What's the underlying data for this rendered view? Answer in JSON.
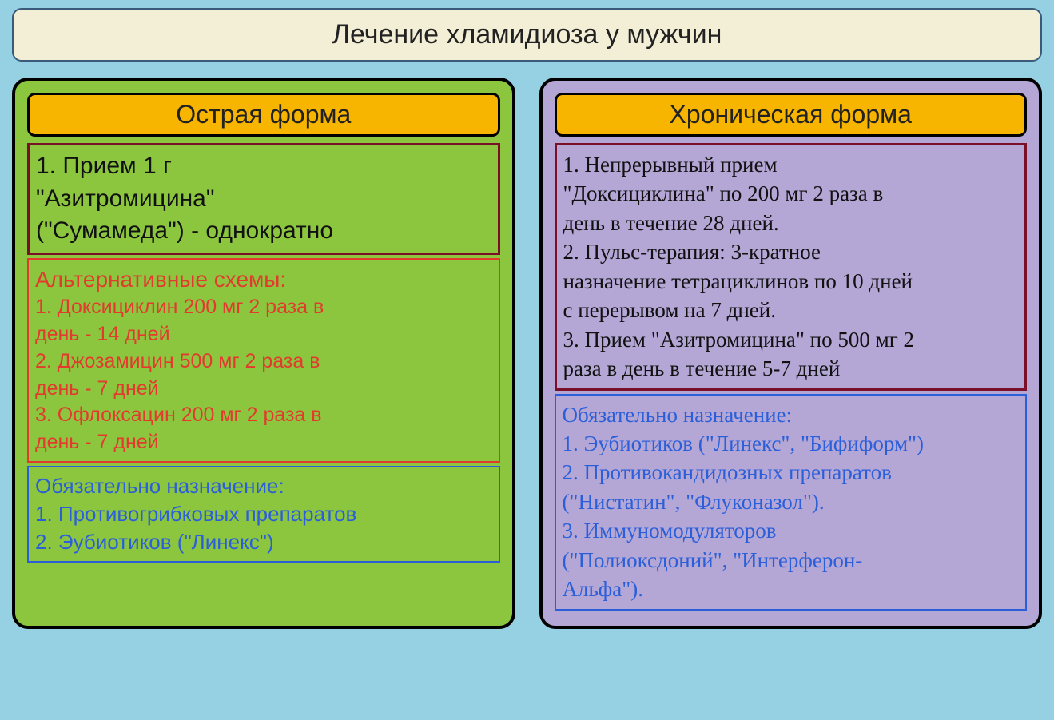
{
  "page": {
    "background_color": "#96d1e3"
  },
  "title": {
    "text": "Лечение хламидиоза у мужчин",
    "background_color": "#f3efd6",
    "border_color": "#3a5a7a",
    "font_size": 34
  },
  "acute": {
    "header": {
      "text": "Острая форма",
      "background_color": "#f7b500",
      "border_color": "#000000",
      "font_size": 32
    },
    "panel": {
      "background_color": "#8cc63f",
      "border_color": "#000000"
    },
    "primary": {
      "border_color": "#7a0f27",
      "text_color": "#111111",
      "font_size": 30,
      "line1": "1. Прием 1 г",
      "line2": "\"Азитромицина\"",
      "line3": "(\"Сумамеда\") - однократно"
    },
    "alt": {
      "border_color": "#e23b2e",
      "text_color": "#e23b2e",
      "title": "Альтернативные схемы:",
      "title_font_size": 28,
      "item_font_size": 25,
      "item1a": "1. Доксициклин 200 мг 2 раза в",
      "item1b": "день - 14 дней",
      "item2a": "2. Джозамицин 500 мг 2 раза в",
      "item2b": "день - 7 дней",
      "item3a": "3. Офлоксацин 200 мг 2 раза в",
      "item3b": "день - 7 дней"
    },
    "mandatory": {
      "border_color": "#2b5fd9",
      "text_color": "#2b5fd9",
      "font_size": 26,
      "title": "Обязательно назначение:",
      "item1": "1. Противогрибковых препаратов",
      "item2": "2. Эубиотиков (\"Линекс\")"
    }
  },
  "chronic": {
    "header": {
      "text": "Хроническая форма",
      "background_color": "#f7b500",
      "border_color": "#000000",
      "font_size": 32
    },
    "panel": {
      "background_color": "#b4a7d6",
      "border_color": "#000000"
    },
    "primary": {
      "border_color": "#7a0f27",
      "text_color": "#111111",
      "font_family": "Times New Roman",
      "font_size": 27,
      "line1": "1. Непрерывный прием",
      "line2": "\"Доксициклина\" по 200 мг 2 раза в",
      "line3": "день в течение 28 дней.",
      "line4": "2. Пульс-терапия: 3-кратное",
      "line5": "назначение тетрациклинов по 10 дней",
      "line6": "с перерывом на 7 дней.",
      "line7": "3. Прием \"Азитромицина\" по 500 мг 2",
      "line8": "раза в день в течение 5-7 дней"
    },
    "mandatory": {
      "border_color": "#2b5fd9",
      "text_color": "#2b5fd9",
      "font_family": "Times New Roman",
      "font_size": 27,
      "title": "Обязательно назначение:",
      "item1": "1. Эубиотиков (\"Линекс\", \"Бифиформ\")",
      "item2": "2. Противокандидозных препаратов",
      "item3": "(\"Нистатин\", \"Флуконазол\").",
      "item4": "3. Иммуномодуляторов",
      "item5": "(\"Полиоксдоний\", \"Интерферон-",
      "item6": "Альфа\")."
    }
  }
}
